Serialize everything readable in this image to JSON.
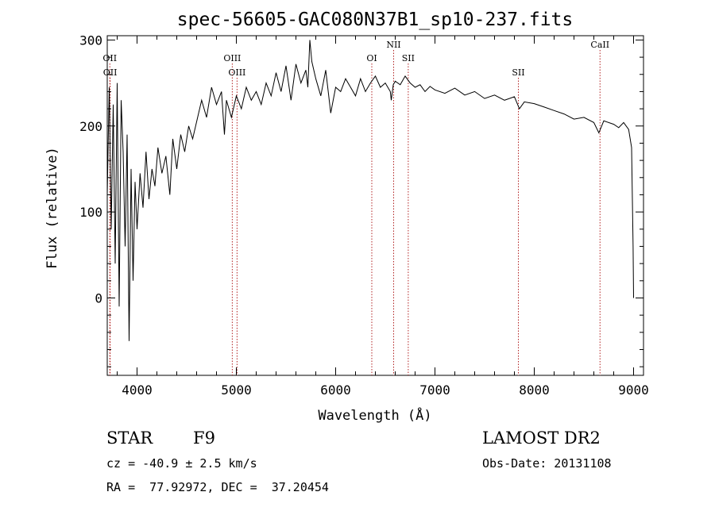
{
  "chart_data": {
    "type": "line",
    "title": "spec-56605-GAC080N37B1_sp10-237.fits",
    "xlabel": "Wavelength (Å)",
    "ylabel": "Flux (relative)",
    "xlim": [
      3700,
      9100
    ],
    "ylim": [
      -90,
      305
    ],
    "x_ticks": [
      4000,
      5000,
      6000,
      7000,
      8000,
      9000
    ],
    "y_ticks": [
      0,
      100,
      200,
      300
    ],
    "grid": false,
    "series": [
      {
        "x": [
          3700,
          3720,
          3740,
          3760,
          3780,
          3800,
          3820,
          3840,
          3860,
          3880,
          3900,
          3920,
          3940,
          3960,
          3980,
          4000,
          4030,
          4060,
          4090,
          4120,
          4150,
          4180,
          4210,
          4250,
          4290,
          4330,
          4360,
          4400,
          4440,
          4480,
          4520,
          4560,
          4600,
          4650,
          4700,
          4750,
          4800,
          4850,
          4880,
          4900,
          4950,
          5000,
          5050,
          5100,
          5150,
          5200,
          5250,
          5300,
          5350,
          5400,
          5450,
          5500,
          5550,
          5600,
          5650,
          5700,
          5720,
          5740,
          5760,
          5800,
          5850,
          5900,
          5950,
          6000,
          6050,
          6100,
          6150,
          6200,
          6250,
          6300,
          6350,
          6400,
          6450,
          6500,
          6550,
          6560,
          6580,
          6600,
          6650,
          6700,
          6750,
          6800,
          6850,
          6900,
          6950,
          7000,
          7100,
          7200,
          7300,
          7400,
          7500,
          7600,
          7700,
          7800,
          7850,
          7900,
          8000,
          8100,
          8200,
          8300,
          8400,
          8500,
          8600,
          8650,
          8700,
          8800,
          8850,
          8900,
          8950,
          8980,
          8995,
          9000
        ],
        "y": [
          120,
          245,
          80,
          225,
          40,
          250,
          -10,
          230,
          170,
          60,
          190,
          -50,
          150,
          20,
          135,
          80,
          145,
          105,
          170,
          115,
          150,
          130,
          175,
          145,
          165,
          120,
          185,
          150,
          190,
          170,
          200,
          185,
          205,
          230,
          210,
          245,
          225,
          240,
          190,
          230,
          210,
          235,
          220,
          245,
          230,
          240,
          225,
          250,
          235,
          262,
          240,
          270,
          230,
          272,
          250,
          265,
          245,
          300,
          275,
          255,
          235,
          265,
          215,
          245,
          240,
          255,
          245,
          235,
          255,
          240,
          250,
          258,
          245,
          250,
          240,
          230,
          248,
          252,
          248,
          258,
          250,
          245,
          248,
          240,
          246,
          242,
          238,
          244,
          236,
          240,
          232,
          236,
          230,
          234,
          220,
          228,
          226,
          222,
          218,
          214,
          208,
          210,
          204,
          192,
          206,
          202,
          198,
          204,
          196,
          175,
          60,
          0
        ]
      }
    ],
    "line_markers": [
      {
        "label": "OII",
        "x": 3726,
        "row": 1
      },
      {
        "label": "OII",
        "x": 3729,
        "row": 2
      },
      {
        "label": "OIII",
        "x": 4959,
        "row": 1
      },
      {
        "label": "OIII",
        "x": 5007,
        "row": 2
      },
      {
        "label": "OI",
        "x": 6364,
        "row": 1
      },
      {
        "label": "NII",
        "x": 6584,
        "row": 0
      },
      {
        "label": "SII",
        "x": 6731,
        "row": 1
      },
      {
        "label": "SII",
        "x": 7840,
        "row": 2
      },
      {
        "label": "CaII",
        "x": 8662,
        "row": 0
      }
    ],
    "marker_color": "#b22222"
  },
  "info": {
    "class_label": "STAR",
    "subclass_label": "F9",
    "survey_label": "LAMOST DR2",
    "cz_text": "cz = -40.9 ± 2.5 km/s",
    "obs_date_text": "Obs-Date: 20131108",
    "coords_text": "RA =  77.92972, DEC =  37.20454"
  }
}
